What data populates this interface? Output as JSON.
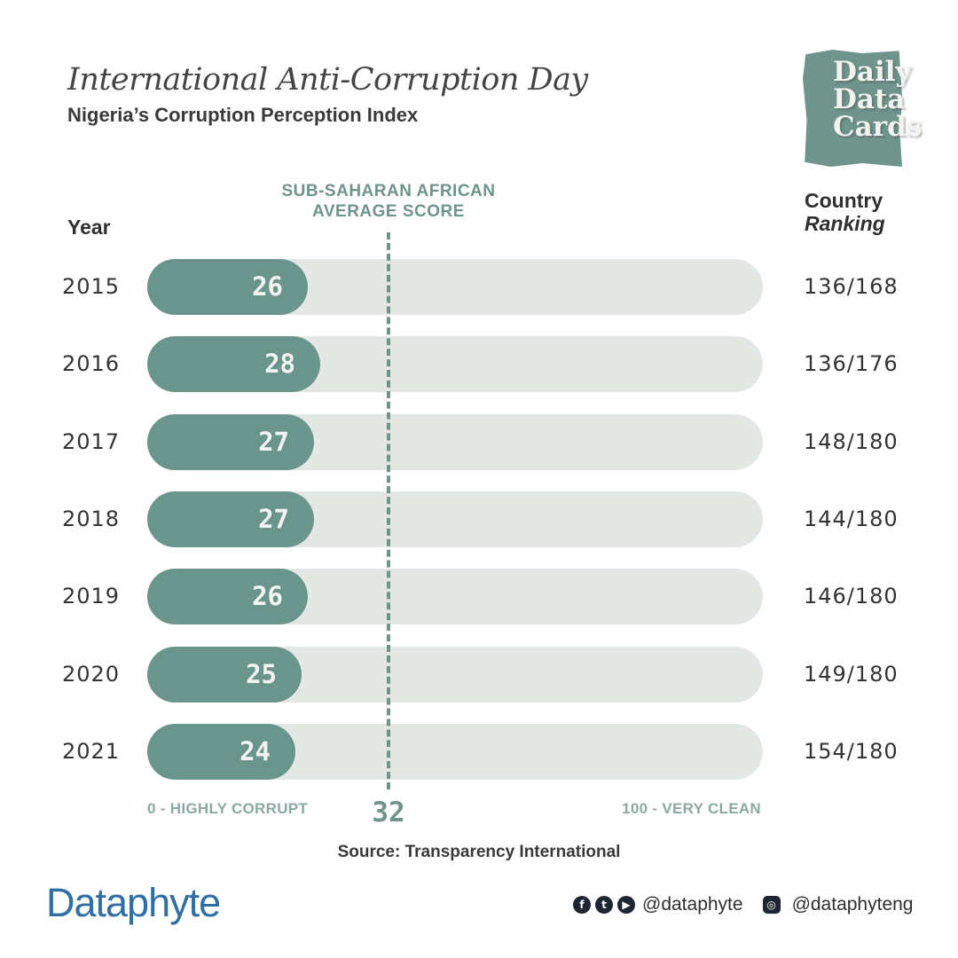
{
  "header": {
    "title": "International Anti-Corruption Day",
    "subtitle": "Nigeria’s Corruption Perception Index"
  },
  "logo": {
    "text": "Daily\nData\nCards"
  },
  "columns": {
    "year": "Year",
    "rank_line1": "Country",
    "rank_line2": "Ranking"
  },
  "average": {
    "label": "SUB-SAHARAN AFRICAN AVERAGE SCORE",
    "value": "32"
  },
  "axis": {
    "min_label": "0 - HIGHLY CORRUPT",
    "max_label": "100 - VERY CLEAN"
  },
  "chart_data": {
    "type": "bar",
    "orientation": "horizontal",
    "title": "Nigeria’s Corruption Perception Index",
    "categories": [
      "2015",
      "2016",
      "2017",
      "2018",
      "2019",
      "2020",
      "2021"
    ],
    "values": [
      26,
      28,
      27,
      27,
      26,
      25,
      24
    ],
    "rankings": [
      "136/168",
      "136/176",
      "148/180",
      "144/180",
      "146/180",
      "149/180",
      "154/180"
    ],
    "xlim": [
      0,
      100
    ],
    "reference_line": {
      "label": "SUB-SAHARAN AFRICAN AVERAGE SCORE",
      "value": 32
    },
    "grid": false,
    "legend": "none"
  },
  "source": "Source: Transparency International",
  "footer": {
    "brand": "Dataphyte",
    "handle_main": "@dataphyte",
    "handle_ig": "@dataphyteng",
    "icons": [
      "facebook-icon",
      "twitter-icon",
      "youtube-icon",
      "instagram-icon"
    ]
  },
  "colors": {
    "accent": "#6a958d",
    "track": "#e4e8e5",
    "brand": "#2f6fa6"
  }
}
